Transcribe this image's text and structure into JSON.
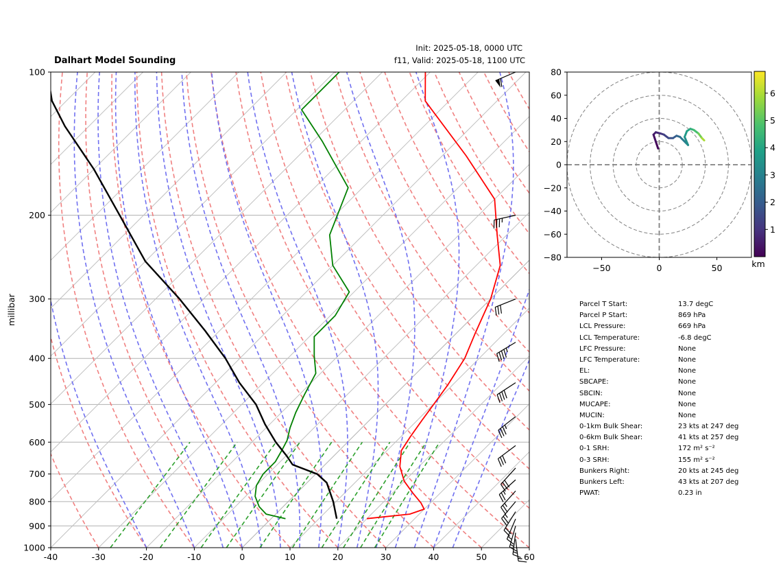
{
  "title": "Dalhart Model Sounding",
  "init": "Init: 2025-05-18, 0000 UTC",
  "valid": "f11, Valid: 2025-05-18, 1100 UTC",
  "colors": {
    "temperature": "#ff0000",
    "dewpoint": "#008000",
    "parcel": "#000000",
    "dry_adiabat": "#f08080",
    "moist_adiabat": "#7070f0",
    "mixing_ratio": "#2ca02c",
    "isotherm_zero": "#8040c0"
  },
  "chart_data": [
    {
      "type": "line",
      "name": "skew-t",
      "xlim": [
        -40,
        60
      ],
      "ylim": [
        1000,
        100
      ],
      "yscale": "log",
      "skew": true,
      "grid": true,
      "ylabel": "millibar",
      "xlabel": "",
      "xticks": [
        -40,
        -30,
        -20,
        -10,
        0,
        10,
        20,
        30,
        40,
        50,
        60
      ],
      "yticks": [
        100,
        200,
        300,
        400,
        500,
        600,
        700,
        800,
        900,
        1000
      ],
      "series": [
        {
          "key": "temperature",
          "points": [
            [
              20,
              869
            ],
            [
              28,
              850
            ],
            [
              30,
              830
            ],
            [
              28,
              805
            ],
            [
              24,
              765
            ],
            [
              20,
              725
            ],
            [
              16,
              675
            ],
            [
              13,
              625
            ],
            [
              12,
              585
            ],
            [
              11,
              540
            ],
            [
              10,
              495
            ],
            [
              9,
              455
            ],
            [
              7,
              400
            ],
            [
              4,
              355
            ],
            [
              0,
              300
            ],
            [
              -5,
              255
            ],
            [
              -12,
              220
            ],
            [
              -20,
              185
            ],
            [
              -35,
              150
            ],
            [
              -55,
              115
            ],
            [
              -61,
              100
            ]
          ]
        },
        {
          "key": "dewpoint",
          "points": [
            [
              3,
              869
            ],
            [
              -2,
              850
            ],
            [
              -5,
              820
            ],
            [
              -8,
              780
            ],
            [
              -10,
              740
            ],
            [
              -11,
              700
            ],
            [
              -11,
              660
            ],
            [
              -12,
              625
            ],
            [
              -13,
              595
            ],
            [
              -15,
              560
            ],
            [
              -17,
              520
            ],
            [
              -19,
              475
            ],
            [
              -21,
              430
            ],
            [
              -25,
              395
            ],
            [
              -29,
              360
            ],
            [
              -29,
              325
            ],
            [
              -31,
              290
            ],
            [
              -40,
              255
            ],
            [
              -47,
              220
            ],
            [
              -53,
              175
            ],
            [
              -68,
              140
            ],
            [
              -79,
              120
            ],
            [
              -79,
              100
            ]
          ]
        },
        {
          "key": "parcel",
          "points": [
            [
              13.7,
              869
            ],
            [
              9.4,
              800
            ],
            [
              4.1,
              730
            ],
            [
              0.3,
              700
            ],
            [
              -6.8,
              669
            ],
            [
              -10,
              640
            ],
            [
              -15,
              600
            ],
            [
              -21,
              550
            ],
            [
              -27,
              500
            ],
            [
              -35,
              450
            ],
            [
              -43,
              400
            ],
            [
              -53,
              350
            ],
            [
              -65,
              300
            ],
            [
              -80,
              250
            ],
            [
              -95,
              200
            ],
            [
              -110,
              160
            ],
            [
              -125,
              130
            ],
            [
              -133,
              115
            ],
            [
              -140,
              100
            ]
          ]
        }
      ]
    },
    {
      "type": "line",
      "name": "hodograph",
      "xlim": [
        -80,
        80
      ],
      "ylim": [
        -80,
        80
      ],
      "xticks": [
        -50,
        0,
        50
      ],
      "yticks": [
        -80,
        -60,
        -40,
        -20,
        0,
        20,
        40,
        60,
        80
      ],
      "colorbar_label": "km",
      "colorbar_ticks": [
        1,
        2,
        3,
        4,
        5,
        6
      ],
      "colorbar_range": [
        0,
        6.8
      ],
      "points": [
        [
          -1,
          14
        ],
        [
          -3,
          20
        ],
        [
          -5,
          26
        ],
        [
          -3,
          28
        ],
        [
          1,
          27
        ],
        [
          4,
          26
        ],
        [
          8,
          23
        ],
        [
          12,
          23
        ],
        [
          15,
          25
        ],
        [
          18,
          24
        ],
        [
          20,
          22
        ],
        [
          23,
          19
        ],
        [
          25,
          17
        ],
        [
          22,
          24
        ],
        [
          24,
          29
        ],
        [
          27,
          31
        ],
        [
          30,
          30
        ],
        [
          34,
          27
        ],
        [
          37,
          23
        ],
        [
          39,
          21
        ]
      ],
      "heights": [
        0,
        0.2,
        0.4,
        0.6,
        0.9,
        1.2,
        1.5,
        1.8,
        2.1,
        2.4,
        2.7,
        3.0,
        3.2,
        3.5,
        3.8,
        4.1,
        4.5,
        5.0,
        5.6,
        6.3
      ]
    }
  ],
  "wind_barbs": [
    {
      "p": 100,
      "u": 56,
      "v": 24
    },
    {
      "p": 200,
      "u": 36,
      "v": 8
    },
    {
      "p": 300,
      "u": 30,
      "v": 12
    },
    {
      "p": 370,
      "u": 40,
      "v": 24
    },
    {
      "p": 450,
      "u": 34,
      "v": 22
    },
    {
      "p": 530,
      "u": 28,
      "v": 22
    },
    {
      "p": 610,
      "u": 24,
      "v": 18
    },
    {
      "p": 680,
      "u": 20,
      "v": 22
    },
    {
      "p": 720,
      "u": 20,
      "v": 18
    },
    {
      "p": 760,
      "u": 18,
      "v": 20
    },
    {
      "p": 800,
      "u": 15,
      "v": 18
    },
    {
      "p": 840,
      "u": 10,
      "v": 16
    },
    {
      "p": 870,
      "u": 6,
      "v": 14
    },
    {
      "p": 900,
      "u": 4,
      "v": 14
    },
    {
      "p": 930,
      "u": 2,
      "v": 16
    },
    {
      "p": 960,
      "u": -2,
      "v": 16
    }
  ],
  "parameters": [
    {
      "label": "Parcel T Start:",
      "value": "13.7 degC"
    },
    {
      "label": "Parcel P Start:",
      "value": "869 hPa"
    },
    {
      "label": "LCL Pressure:",
      "value": "669 hPa"
    },
    {
      "label": "LCL Temperature:",
      "value": "-6.8 degC"
    },
    {
      "label": "LFC Pressure:",
      "value": "None"
    },
    {
      "label": "LFC Temperature:",
      "value": "None"
    },
    {
      "label": "EL:",
      "value": "None"
    },
    {
      "label": "SBCAPE:",
      "value": "None"
    },
    {
      "label": "SBCIN:",
      "value": "None"
    },
    {
      "label": "MUCAPE:",
      "value": "None"
    },
    {
      "label": "MUCIN:",
      "value": "None"
    },
    {
      "label": "0-1km Bulk Shear:",
      "value": "23 kts at 247 deg"
    },
    {
      "label": "0-6km Bulk Shear:",
      "value": "41 kts at 257 deg"
    },
    {
      "label": "0-1 SRH:",
      "value": "172 m² s⁻²"
    },
    {
      "label": "0-3 SRH:",
      "value": "155 m² s⁻²"
    },
    {
      "label": "Bunkers Right:",
      "value": "20 kts at 245 deg"
    },
    {
      "label": "Bunkers Left:",
      "value": "43 kts at 207 deg"
    },
    {
      "label": "PWAT:",
      "value": "0.23 in"
    }
  ]
}
